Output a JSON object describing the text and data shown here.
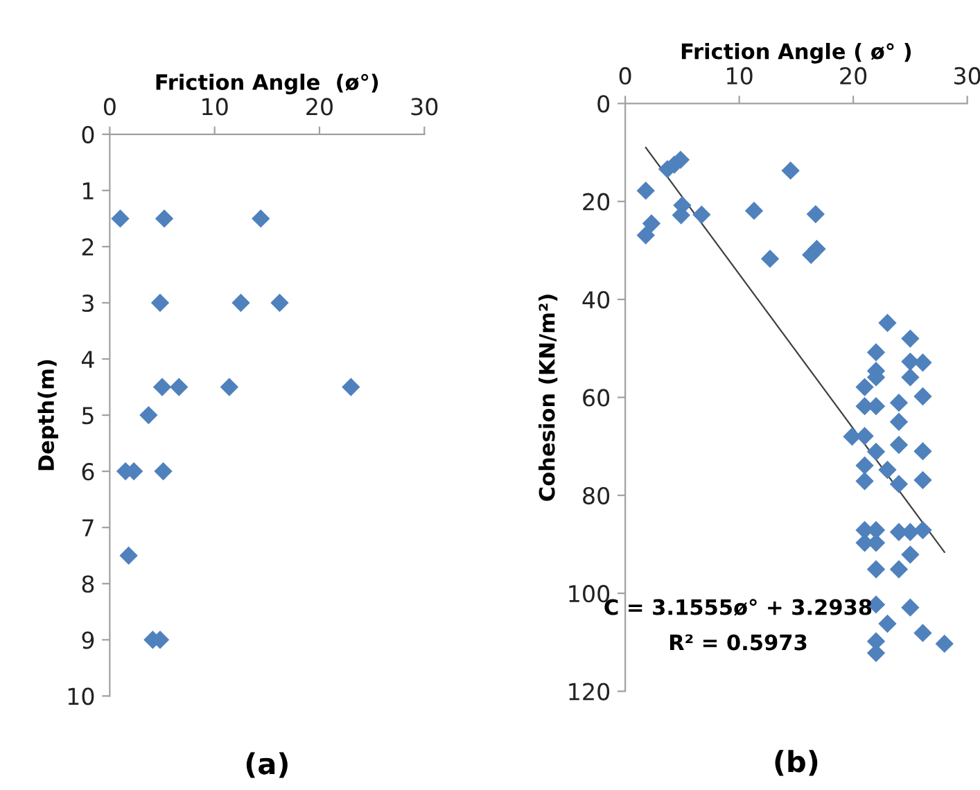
{
  "chart_data": [
    {
      "type": "scatter",
      "xlabel": "Friction Angle  (ø°)",
      "ylabel": "Depth(m)",
      "xlim": [
        0,
        30
      ],
      "xticks": [
        0,
        10,
        20,
        30
      ],
      "ylim": [
        10,
        0
      ],
      "yticks": [
        0,
        1,
        2,
        3,
        4,
        5,
        6,
        7,
        8,
        9,
        10
      ],
      "grid": false,
      "marker": "diamond",
      "series": [
        {
          "color": "#4f81bd",
          "x": [
            1.0,
            5.2,
            14.4,
            4.8,
            12.5,
            16.2,
            5.0,
            6.6,
            11.4,
            23.0,
            3.7,
            1.5,
            2.3,
            5.1,
            1.8,
            4.1,
            4.8
          ],
          "values": [
            1.5,
            1.5,
            1.5,
            3,
            3,
            3,
            4.5,
            4.5,
            4.5,
            4.5,
            5,
            6,
            6,
            6,
            7.5,
            9,
            9
          ]
        }
      ],
      "annotations": [
        "(a)"
      ]
    },
    {
      "type": "scatter",
      "xlabel": "Friction Angle ( ø° )",
      "ylabel": "Cohesion (KN/m²)",
      "xlim": [
        0,
        30
      ],
      "xticks": [
        0,
        10,
        20,
        30
      ],
      "ylim": [
        120,
        0
      ],
      "yticks": [
        0,
        20,
        40,
        60,
        80,
        100,
        120
      ],
      "grid": false,
      "marker": "diamond",
      "series": [
        {
          "color": "#4f81bd",
          "x": [
            1.8,
            3.7,
            4.3,
            4.85,
            1.8,
            2.3,
            5.0,
            4.9,
            6.7,
            11.3,
            14.5,
            16.7,
            12.7,
            16.3,
            16.8,
            23.0,
            25.0,
            22.0,
            25.0,
            26.1,
            22.0,
            22.0,
            25.0,
            21.0,
            26.1,
            24.0,
            21.0,
            22.0,
            24.0,
            19.9,
            21.0,
            24.0,
            22.0,
            26.1,
            21.0,
            23.0,
            21.0,
            26.1,
            24.0,
            21.0,
            22.0,
            24.0,
            25.0,
            26.1,
            21.0,
            22.0,
            25.0,
            22.0,
            24.0,
            22.0,
            25.0,
            23.0,
            26.1,
            28.0,
            22.0,
            22.0
          ],
          "values": [
            17.8,
            13.4,
            12.5,
            11.5,
            26.9,
            24.5,
            20.8,
            22.8,
            22.7,
            21.9,
            13.7,
            22.6,
            31.7,
            30.9,
            29.7,
            44.8,
            48.0,
            50.8,
            52.7,
            52.9,
            54.6,
            55.9,
            55.9,
            57.9,
            59.8,
            61.1,
            61.8,
            61.8,
            65.0,
            68.0,
            67.9,
            69.7,
            71.1,
            71.0,
            73.9,
            74.8,
            77.1,
            76.9,
            77.7,
            87.1,
            87.1,
            87.5,
            87.5,
            87.1,
            89.7,
            89.7,
            92.1,
            95.1,
            95.1,
            102.3,
            102.9,
            106.2,
            108.1,
            110.3,
            109.8,
            112.2
          ]
        },
        {
          "type": "line",
          "color": "#404040",
          "marker": "none",
          "x": [
            1.8,
            28.0
          ],
          "values": [
            9.0,
            91.6
          ]
        }
      ],
      "annotations": [
        "C = 3.1555ø° + 3.2938",
        "R² = 0.5973",
        "(b)"
      ]
    }
  ]
}
